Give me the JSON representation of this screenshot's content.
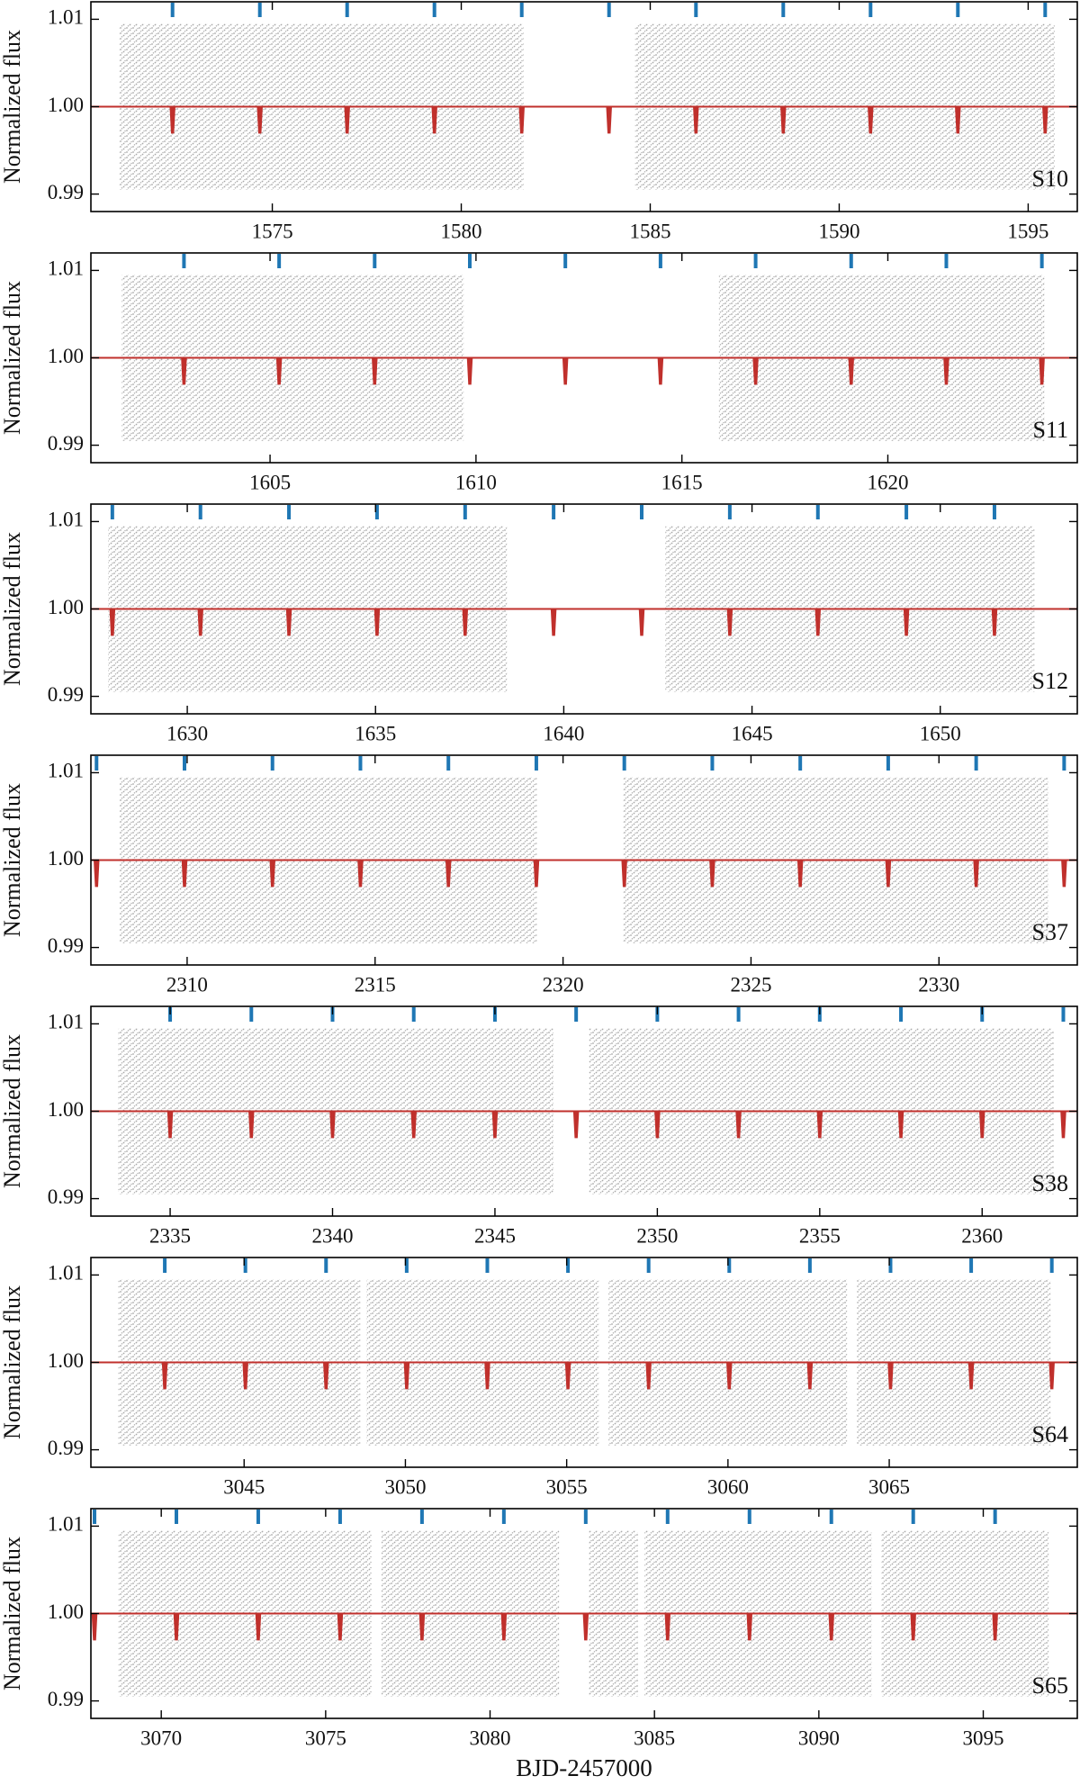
{
  "chart_data": [
    {
      "type": "scatter",
      "ylabel": "Normalized flux",
      "label": "S10",
      "xlim": [
        1570.2,
        1596.3
      ],
      "xticks": [
        1575,
        1580,
        1585,
        1590,
        1595
      ],
      "ylim": [
        0.988,
        1.012
      ],
      "yticks": [
        0.99,
        {
          "value": 1,
          "label": "1.00"
        },
        1.01
      ],
      "segments": [
        [
          1570.95,
          1581.65
        ],
        [
          1584.6,
          1595.7
        ]
      ],
      "flux_range": [
        0.9905,
        1.0095
      ],
      "point_color": "#a9a9a9",
      "model_color": "#c0302c",
      "transit_color": "#1f77b4",
      "model_baseline": 1,
      "transit_flux": 0.997,
      "transits": [
        1572.36,
        1574.67,
        1576.98,
        1579.29,
        1581.6,
        1583.91,
        1586.21,
        1588.52,
        1590.83,
        1593.14,
        1595.45
      ]
    },
    {
      "type": "scatter",
      "ylabel": "Normalized flux",
      "label": "S11",
      "xlim": [
        1600.65,
        1624.6
      ],
      "xticks": [
        1605,
        1610,
        1615,
        1620
      ],
      "ylim": [
        0.988,
        1.012
      ],
      "yticks": [
        0.99,
        {
          "value": 1,
          "label": "1.00"
        },
        1.01
      ],
      "segments": [
        [
          1601.4,
          1609.7
        ],
        [
          1615.9,
          1623.8
        ]
      ],
      "flux_range": [
        0.9905,
        1.0095
      ],
      "point_color": "#a9a9a9",
      "model_color": "#c0302c",
      "transit_color": "#1f77b4",
      "model_baseline": 1,
      "transit_flux": 0.997,
      "transits": [
        1602.91,
        1605.22,
        1607.54,
        1609.85,
        1612.17,
        1614.48,
        1616.79,
        1619.11,
        1621.42,
        1623.74
      ]
    },
    {
      "type": "scatter",
      "ylabel": "Normalized flux",
      "label": "S12",
      "xlim": [
        1627.44,
        1653.64
      ],
      "xticks": [
        1630,
        1635,
        1640,
        1645,
        1650
      ],
      "ylim": [
        0.988,
        1.012
      ],
      "yticks": [
        0.99,
        {
          "value": 1,
          "label": "1.00"
        },
        1.01
      ],
      "segments": [
        [
          1627.9,
          1638.5
        ],
        [
          1642.7,
          1652.5
        ]
      ],
      "flux_range": [
        0.9905,
        1.0095
      ],
      "point_color": "#a9a9a9",
      "model_color": "#c0302c",
      "transit_color": "#1f77b4",
      "model_baseline": 1,
      "transit_flux": 0.997,
      "transits": [
        1628.01,
        1630.35,
        1632.7,
        1635.04,
        1637.38,
        1639.73,
        1642.07,
        1644.41,
        1646.75,
        1649.1,
        1651.44
      ]
    },
    {
      "type": "scatter",
      "ylabel": "Normalized flux",
      "label": "S37",
      "xlim": [
        2307.44,
        2333.68
      ],
      "xticks": [
        2310,
        2315,
        2320,
        2325,
        2330
      ],
      "ylim": [
        0.988,
        1.012
      ],
      "yticks": [
        0.99,
        {
          "value": 1,
          "label": "1.00"
        },
        1.01
      ],
      "segments": [
        [
          2308.2,
          2319.3
        ],
        [
          2321.6,
          2332.9
        ]
      ],
      "flux_range": [
        0.9905,
        1.0095
      ],
      "point_color": "#a9a9a9",
      "model_color": "#c0302c",
      "transit_color": "#1f77b4",
      "model_baseline": 1,
      "transit_flux": 0.997,
      "transits": [
        2307.59,
        2309.93,
        2312.27,
        2314.61,
        2316.95,
        2319.29,
        2321.63,
        2323.97,
        2326.31,
        2328.65,
        2330.99,
        2333.33
      ]
    },
    {
      "type": "scatter",
      "ylabel": "Normalized flux",
      "label": "S38",
      "xlim": [
        2332.56,
        2362.93
      ],
      "xticks": [
        2335,
        2340,
        2345,
        2350,
        2355,
        2360
      ],
      "ylim": [
        0.988,
        1.012
      ],
      "yticks": [
        0.99,
        {
          "value": 1,
          "label": "1.00"
        },
        1.01
      ],
      "segments": [
        [
          2333.4,
          2346.8
        ],
        [
          2347.9,
          2362.2
        ]
      ],
      "flux_range": [
        0.9905,
        1.0095
      ],
      "point_color": "#a9a9a9",
      "model_color": "#c0302c",
      "transit_color": "#1f77b4",
      "model_baseline": 1,
      "transit_flux": 0.997,
      "transits": [
        2335,
        2337.5,
        2340,
        2342.5,
        2345,
        2347.5,
        2350,
        2352.5,
        2355,
        2357.5,
        2360,
        2362.5
      ]
    },
    {
      "type": "scatter",
      "ylabel": "Normalized flux",
      "label": "S64",
      "xlim": [
        3040.25,
        3070.83
      ],
      "xticks": [
        3045,
        3050,
        3055,
        3060,
        3065
      ],
      "ylim": [
        0.988,
        1.012
      ],
      "yticks": [
        0.99,
        {
          "value": 1,
          "label": "1.00"
        },
        1.01
      ],
      "segments": [
        [
          3041.1,
          3048.6
        ],
        [
          3048.8,
          3056.0
        ],
        [
          3056.3,
          3063.7
        ],
        [
          3064.0,
          3070.0
        ]
      ],
      "flux_range": [
        0.9905,
        1.0095
      ],
      "point_color": "#a9a9a9",
      "model_color": "#c0302c",
      "transit_color": "#1f77b4",
      "model_baseline": 1,
      "transit_flux": 0.997,
      "transits": [
        3042.54,
        3045.04,
        3047.54,
        3050.04,
        3052.54,
        3055.04,
        3057.54,
        3060.04,
        3062.54,
        3065.04,
        3067.54,
        3070.04
      ]
    },
    {
      "type": "scatter",
      "ylabel": "Normalized flux",
      "label": "S65",
      "xlabel": "BJD-2457000",
      "xlim": [
        3067.86,
        3097.86
      ],
      "xticks": [
        3070,
        3075,
        3080,
        3085,
        3090,
        3095
      ],
      "ylim": [
        0.988,
        1.012
      ],
      "yticks": [
        0.99,
        {
          "value": 1,
          "label": "1.00"
        },
        1.01
      ],
      "segments": [
        [
          3068.7,
          3076.4
        ],
        [
          3076.7,
          3082.1
        ],
        [
          3083.0,
          3084.5
        ],
        [
          3084.7,
          3091.6
        ],
        [
          3091.9,
          3097.0
        ]
      ],
      "flux_range": [
        0.9905,
        1.0095
      ],
      "point_color": "#a9a9a9",
      "model_color": "#c0302c",
      "transit_color": "#1f77b4",
      "model_baseline": 1,
      "transit_flux": 0.997,
      "transits": [
        3067.97,
        3070.46,
        3072.95,
        3075.44,
        3077.93,
        3080.42,
        3082.91,
        3085.4,
        3087.89,
        3090.38,
        3092.87,
        3095.36
      ]
    }
  ]
}
